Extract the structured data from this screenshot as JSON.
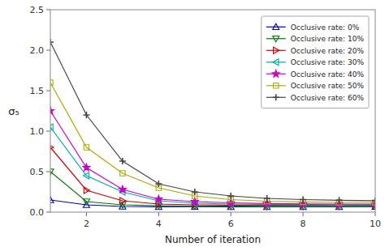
{
  "chart_data": {
    "type": "line",
    "xlabel": "Number of iteration",
    "ylabel": "σ₅",
    "x": [
      1,
      2,
      3,
      4,
      5,
      6,
      7,
      8,
      9,
      10
    ],
    "xlim": [
      1,
      10
    ],
    "ylim": [
      0,
      2.5
    ],
    "xticks": [
      2,
      4,
      6,
      8,
      10
    ],
    "yticks": [
      {
        "value": 0,
        "label": "0.0"
      },
      0.5,
      {
        "value": 1.0,
        "label": "1.0"
      },
      1.5,
      {
        "value": 2.0,
        "label": "2.0"
      },
      2.5
    ],
    "grid": false,
    "legend": "upper right",
    "series": [
      {
        "name": "Occlusive rate: 0%",
        "color": "#0000aa",
        "marker": "triangle-up-open",
        "values": [
          0.15,
          0.09,
          0.07,
          0.065,
          0.068,
          0.065,
          0.065,
          0.065,
          0.065,
          0.068
        ]
      },
      {
        "name": "Occlusive rate: 10%",
        "color": "#007700",
        "marker": "triangle-down-open",
        "values": [
          0.5,
          0.13,
          0.09,
          0.078,
          0.075,
          0.073,
          0.072,
          0.071,
          0.071,
          0.072
        ]
      },
      {
        "name": "Occlusive rate: 20%",
        "color": "#cc0000",
        "marker": "triangle-right-open",
        "values": [
          0.8,
          0.27,
          0.14,
          0.1,
          0.09,
          0.087,
          0.085,
          0.085,
          0.085,
          0.087
        ]
      },
      {
        "name": "Occlusive rate: 30%",
        "color": "#00aaaa",
        "marker": "triangle-left-open",
        "values": [
          1.05,
          0.45,
          0.25,
          0.14,
          0.11,
          0.1,
          0.097,
          0.093,
          0.091,
          0.091
        ]
      },
      {
        "name": "Occlusive rate: 40%",
        "color": "#cc00cc",
        "marker": "star",
        "values": [
          1.25,
          0.55,
          0.28,
          0.16,
          0.13,
          0.115,
          0.107,
          0.102,
          0.1,
          0.1
        ]
      },
      {
        "name": "Occlusive rate: 50%",
        "color": "#aaaa00",
        "marker": "square-open",
        "values": [
          1.6,
          0.8,
          0.48,
          0.3,
          0.2,
          0.155,
          0.135,
          0.126,
          0.12,
          0.12
        ]
      },
      {
        "name": "Occlusive rate: 60%",
        "color": "#444444",
        "marker": "plus",
        "values": [
          2.1,
          1.2,
          0.63,
          0.35,
          0.25,
          0.2,
          0.17,
          0.155,
          0.147,
          0.142
        ]
      }
    ]
  }
}
